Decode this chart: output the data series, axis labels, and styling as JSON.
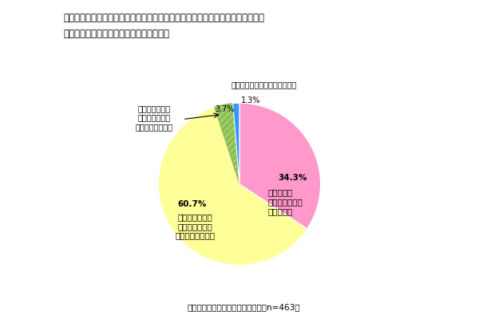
{
  "title_line1": "例年と比較して、今年はご家族と過ごす時間を大切にしようと考えていますか。",
  "title_line2": "【サマータイム導入＋導入予定者の割合】",
  "values": [
    34.3,
    60.7,
    3.7,
    1.3
  ],
  "colors": [
    "#FF99CC",
    "#FFFF99",
    "#99CC66",
    "#3399FF"
  ],
  "hatch": [
    null,
    null,
    "////",
    null
  ],
  "startangle": 90,
  "footer": "（サマータイム導入＋導入予定者　n=463）",
  "background_color": "#FFFFFF",
  "text_slice0_pct": "34.3%",
  "text_slice0_label": "例年以上に\n大切にしようと\n考えている",
  "text_slice1_pct": "60.7%",
  "text_slice1_label": "大切にしようと\n考えているが、\n例年と同じぐらい",
  "text_slice2_pct": "3.7%",
  "text_slice3_pct": "1.3%",
  "text_slice3_label": "大切にしようとは考えていない",
  "text_legend2": "大切にしようと\n考えているが、\n例年ほどではない"
}
